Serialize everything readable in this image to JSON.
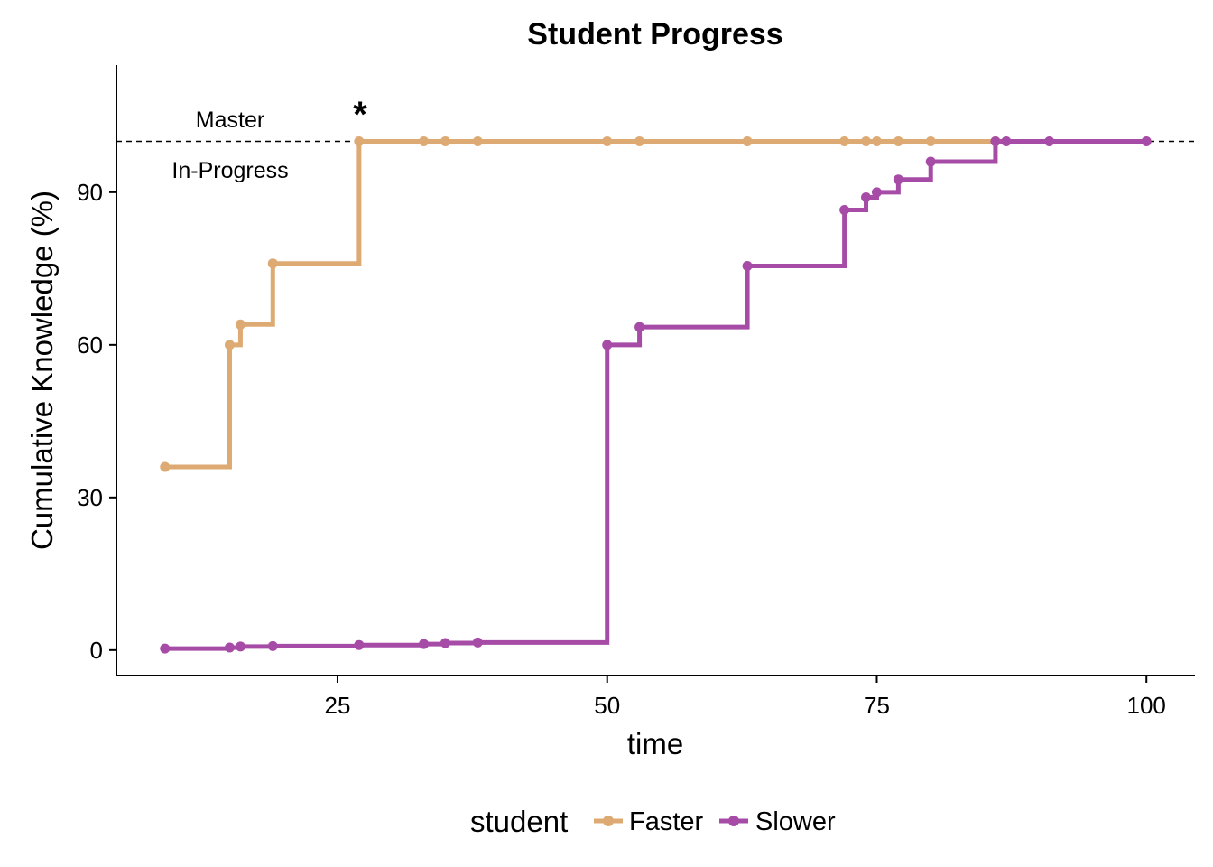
{
  "chart_data": {
    "type": "line",
    "title": "Student Progress",
    "xlabel": "time",
    "ylabel": "Cumulative Knowledge (%)",
    "xlim": [
      4.5,
      104.5
    ],
    "ylim": [
      -5,
      115
    ],
    "xticks": [
      25,
      50,
      75,
      100
    ],
    "yticks": [
      0,
      30,
      60,
      90
    ],
    "step": "hv",
    "grid": false,
    "legend": {
      "title": "student",
      "position": "bottom"
    },
    "reference_line": {
      "y": 100,
      "style": "dashed",
      "upper_label": "Master",
      "lower_label": "In-Progress"
    },
    "annotations": [
      {
        "text": "*",
        "x": 27,
        "y": 105
      }
    ],
    "series": [
      {
        "name": "Faster",
        "color": "#DEAA74",
        "x": [
          9,
          15,
          16,
          19,
          27,
          33,
          35,
          38,
          50,
          53,
          63,
          72,
          74,
          75,
          77,
          80,
          86
        ],
        "y": [
          36,
          60,
          64,
          76,
          100,
          100,
          100,
          100,
          100,
          100,
          100,
          100,
          100,
          100,
          100,
          100,
          100
        ]
      },
      {
        "name": "Slower",
        "color": "#A64CA6",
        "x": [
          9,
          15,
          16,
          19,
          27,
          33,
          35,
          38,
          50,
          53,
          63,
          72,
          74,
          75,
          77,
          80,
          86,
          87,
          91,
          100
        ],
        "y": [
          0.3,
          0.5,
          0.7,
          0.8,
          1.0,
          1.2,
          1.4,
          1.5,
          60,
          63.5,
          75.5,
          86.5,
          89,
          90,
          92.5,
          96,
          100,
          100,
          100,
          100
        ]
      }
    ]
  }
}
